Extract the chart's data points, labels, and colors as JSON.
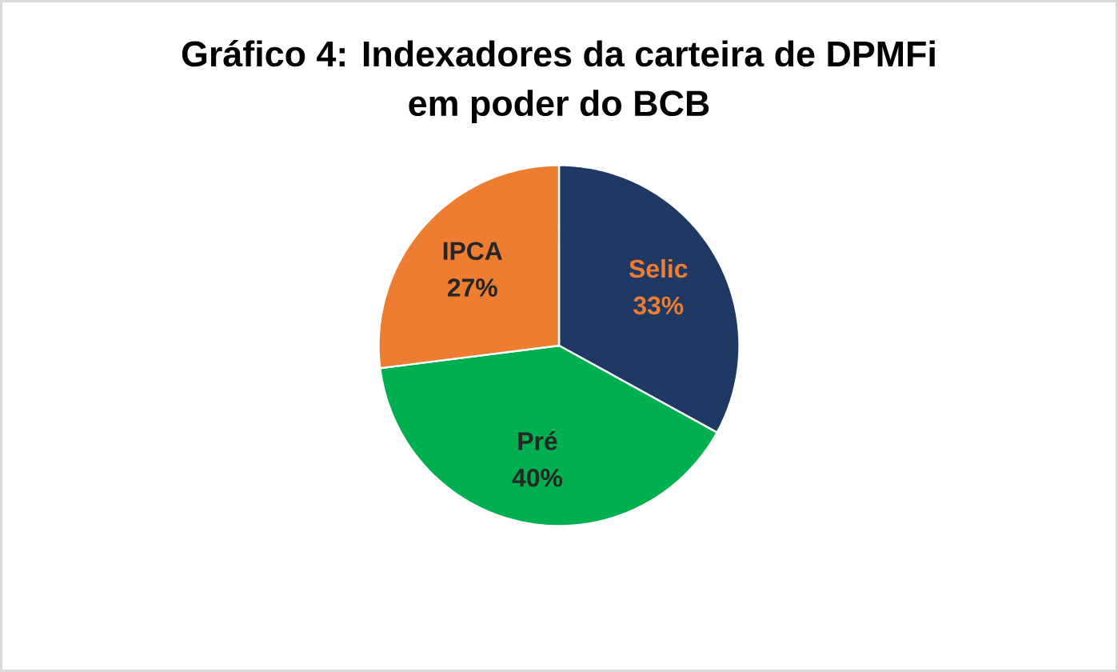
{
  "chart_data": {
    "type": "pie",
    "title": "Gráfico 4: Indexadores da carteira de DPMFi em poder do BCB",
    "categories": [
      "Selic",
      "Pré",
      "IPCA"
    ],
    "values": [
      33,
      40,
      27
    ],
    "colors": [
      "#1f3864",
      "#00b050",
      "#ed7d31"
    ],
    "value_labels": [
      "33%",
      "40%",
      "27%"
    ]
  }
}
